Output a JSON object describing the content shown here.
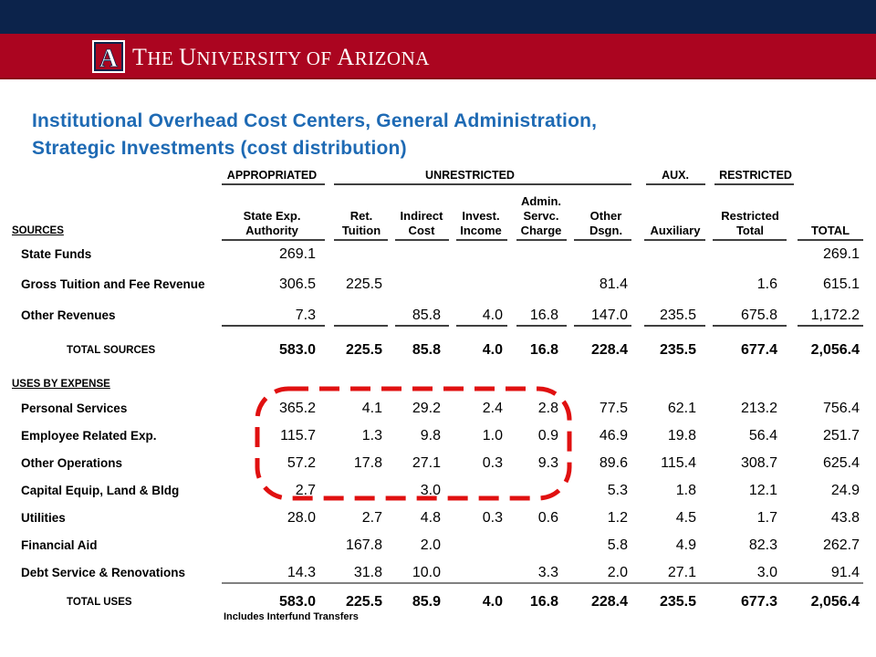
{
  "header": {
    "org_name_T": "T",
    "org_name_rest1": "HE ",
    "org_name_U": "U",
    "org_name_rest2": "NIVERSITY OF ",
    "org_name_A": "A",
    "org_name_rest3": "RIZONA",
    "logo_letter": "A"
  },
  "colors": {
    "navy": "#0c234b",
    "brand_red": "#ab0520",
    "title_blue": "#1e6ab4",
    "highlight_red": "#e01010"
  },
  "slide": {
    "title_line1": "Institutional Overhead Cost Centers, General Administration,",
    "title_line2": "Strategic Investments (cost distribution)"
  },
  "table": {
    "group_headers": {
      "appropriated": "APPROPRIATED",
      "unrestricted": "UNRESTRICTED",
      "aux": "AUX.",
      "restricted": "RESTRICTED"
    },
    "sources_label": "SOURCES",
    "uses_label": "USES BY EXPENSE",
    "columns": [
      {
        "l1": "State Exp.",
        "l2": "Authority"
      },
      {
        "l1": "Ret.",
        "l2": "Tuition"
      },
      {
        "l1": "Indirect",
        "l2": "Cost"
      },
      {
        "l1": "Invest.",
        "l2": "Income"
      },
      {
        "l0": "Admin.",
        "l1": "Servc.",
        "l2": "Charge"
      },
      {
        "l1": "Other",
        "l2": "Dsgn."
      },
      {
        "l2": "Auxiliary"
      },
      {
        "l1": "Restricted",
        "l2": "Total"
      },
      {
        "l2": "TOTAL"
      }
    ],
    "source_rows": [
      {
        "label": "State Funds",
        "values": [
          "269.1",
          "",
          "",
          "",
          "",
          "",
          "",
          "",
          "269.1"
        ]
      },
      {
        "label": "Gross Tuition and Fee Revenue",
        "values": [
          "306.5",
          "225.5",
          "",
          "",
          "",
          "81.4",
          "",
          "1.6",
          "615.1"
        ]
      },
      {
        "label": "Other Revenues",
        "values": [
          "7.3",
          "",
          "85.8",
          "4.0",
          "16.8",
          "147.0",
          "235.5",
          "675.8",
          "1,172.2"
        ]
      }
    ],
    "total_sources": {
      "label": "TOTAL SOURCES",
      "values": [
        "583.0",
        "225.5",
        "85.8",
        "4.0",
        "16.8",
        "228.4",
        "235.5",
        "677.4",
        "2,056.4"
      ]
    },
    "use_rows": [
      {
        "label": "Personal Services",
        "values": [
          "365.2",
          "4.1",
          "29.2",
          "2.4",
          "2.8",
          "77.5",
          "62.1",
          "213.2",
          "756.4"
        ]
      },
      {
        "label": "Employee Related Exp.",
        "values": [
          "115.7",
          "1.3",
          "9.8",
          "1.0",
          "0.9",
          "46.9",
          "19.8",
          "56.4",
          "251.7"
        ]
      },
      {
        "label": "Other Operations",
        "values": [
          "57.2",
          "17.8",
          "27.1",
          "0.3",
          "9.3",
          "89.6",
          "115.4",
          "308.7",
          "625.4"
        ]
      },
      {
        "label": "Capital Equip, Land & Bldg",
        "values": [
          "2.7",
          "",
          "3.0",
          "",
          "",
          "5.3",
          "1.8",
          "12.1",
          "24.9"
        ]
      },
      {
        "label": "Utilities",
        "values": [
          "28.0",
          "2.7",
          "4.8",
          "0.3",
          "0.6",
          "1.2",
          "4.5",
          "1.7",
          "43.8"
        ]
      },
      {
        "label": "Financial Aid",
        "values": [
          "",
          "167.8",
          "2.0",
          "",
          "",
          "5.8",
          "4.9",
          "82.3",
          "262.7"
        ]
      },
      {
        "label": "Debt Service & Renovations",
        "values": [
          "14.3",
          "31.8",
          "10.0",
          "",
          "3.3",
          "2.0",
          "27.1",
          "3.0",
          "91.4"
        ]
      }
    ],
    "total_uses": {
      "label": "TOTAL USES",
      "values": [
        "583.0",
        "225.5",
        "85.9",
        "4.0",
        "16.8",
        "228.4",
        "235.5",
        "677.3",
        "2,056.4"
      ]
    },
    "footnote": "Includes Interfund Transfers"
  }
}
